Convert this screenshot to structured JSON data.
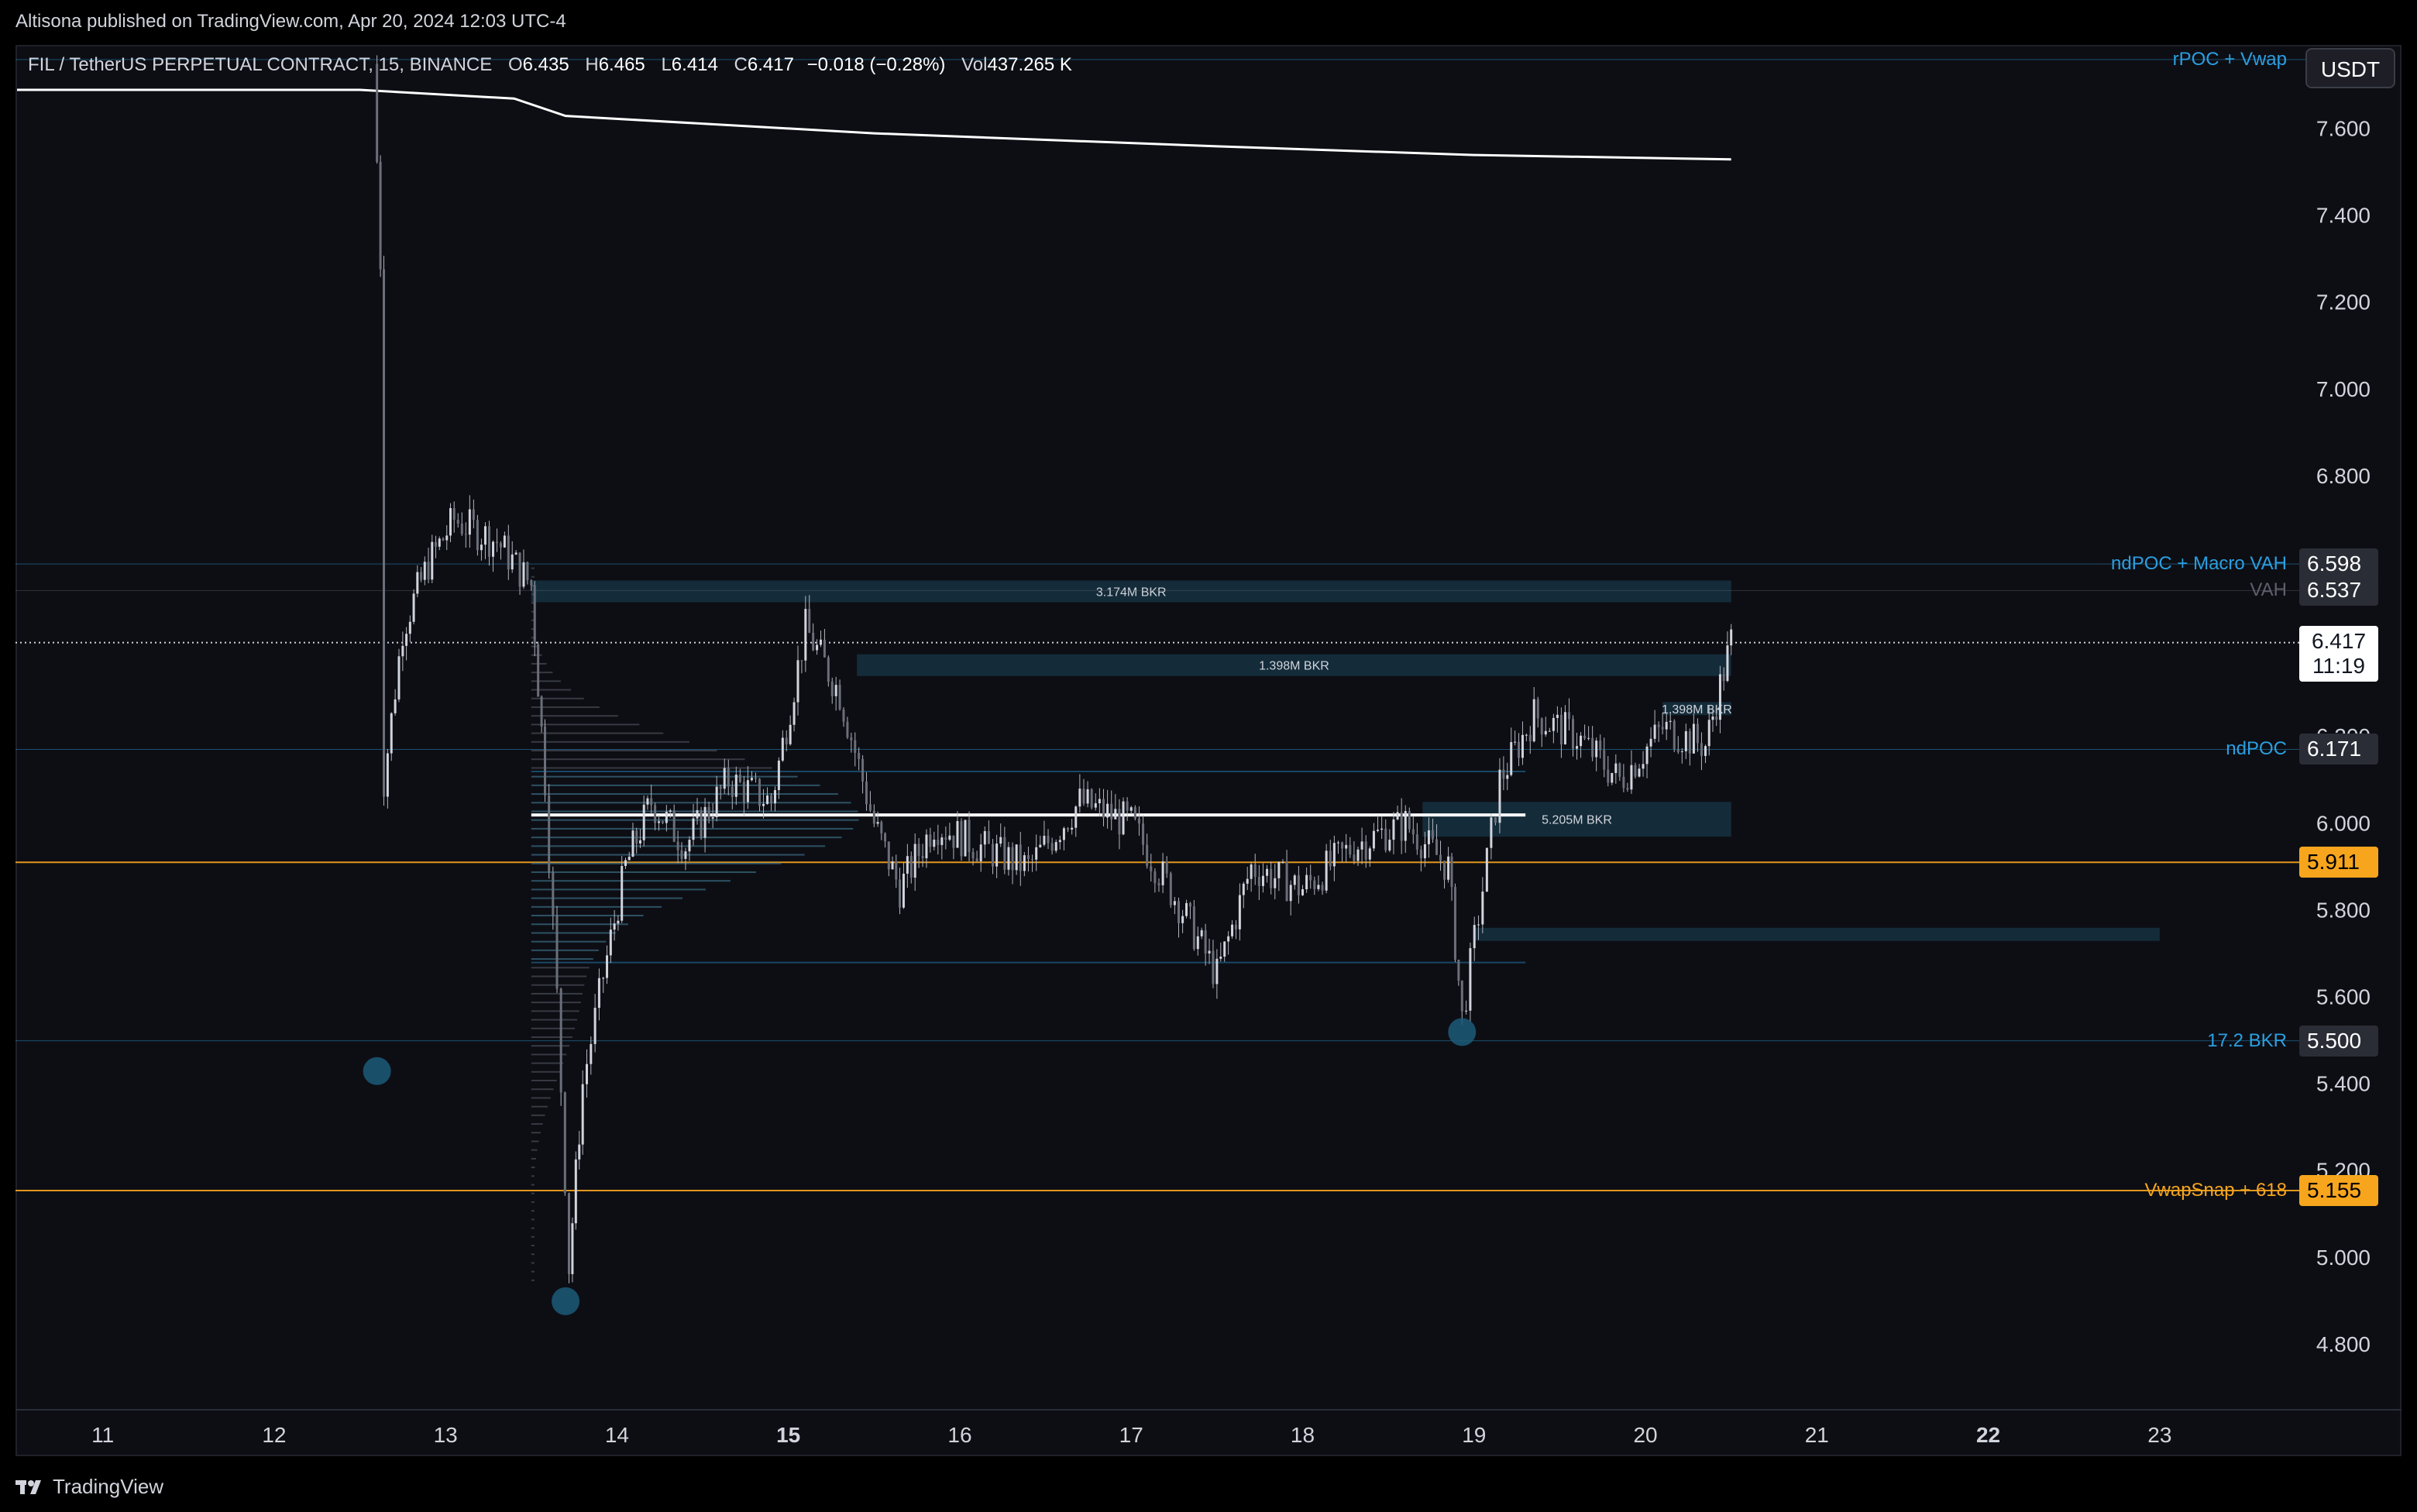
{
  "header": {
    "published": "Altisona published on TradingView.com, Apr 20, 2024 12:03 UTC-4"
  },
  "legend": {
    "symbol": "FIL / TetherUS PERPETUAL CONTRACT, 15, BINANCE",
    "o_label": "O",
    "o": "6.435",
    "h_label": "H",
    "h": "6.465",
    "l_label": "L",
    "l": "6.414",
    "c_label": "C",
    "c": "6.417",
    "change": "−0.018 (−0.28%)",
    "vol_label": "Vol",
    "vol": "437.265 K"
  },
  "currency_button": "USDT",
  "footer": {
    "brand": "TradingView"
  },
  "colors": {
    "background": "#0d0e14",
    "candles": "#b2b5be",
    "orange": "#f7a51d",
    "blue_text": "#2b9fe0",
    "zone": "#163444"
  },
  "chart_data": {
    "type": "candlestick",
    "y_range": [
      4.65,
      7.79
    ],
    "x_range": [
      10.5,
      23.76
    ],
    "y_ticks": [
      "4.800",
      "5.000",
      "5.200",
      "5.400",
      "5.600",
      "5.800",
      "6.000",
      "6.200",
      "6.400",
      "6.600",
      "6.800",
      "7.000",
      "7.200",
      "7.400",
      "7.600"
    ],
    "x_ticks": [
      {
        "label": "11",
        "value": 11,
        "bold": false
      },
      {
        "label": "12",
        "value": 12,
        "bold": false
      },
      {
        "label": "13",
        "value": 13,
        "bold": false
      },
      {
        "label": "14",
        "value": 14,
        "bold": false
      },
      {
        "label": "15",
        "value": 15,
        "bold": true
      },
      {
        "label": "16",
        "value": 16,
        "bold": false
      },
      {
        "label": "17",
        "value": 17,
        "bold": false
      },
      {
        "label": "18",
        "value": 18,
        "bold": false
      },
      {
        "label": "19",
        "value": 19,
        "bold": false
      },
      {
        "label": "20",
        "value": 20,
        "bold": false
      },
      {
        "label": "21",
        "value": 21,
        "bold": false
      },
      {
        "label": "22",
        "value": 22,
        "bold": true
      },
      {
        "label": "23",
        "value": 23,
        "bold": false
      }
    ],
    "price_path": [
      {
        "x": 12.58,
        "y": 7.75
      },
      {
        "x": 12.62,
        "y": 7.3
      },
      {
        "x": 12.64,
        "y": 6.1
      },
      {
        "x": 12.75,
        "y": 6.45
      },
      {
        "x": 12.9,
        "y": 6.6
      },
      {
        "x": 13.05,
        "y": 6.7
      },
      {
        "x": 13.3,
        "y": 6.65
      },
      {
        "x": 13.5,
        "y": 6.55
      },
      {
        "x": 13.58,
        "y": 6.1
      },
      {
        "x": 13.65,
        "y": 5.6
      },
      {
        "x": 13.72,
        "y": 4.98
      },
      {
        "x": 13.8,
        "y": 5.4
      },
      {
        "x": 13.92,
        "y": 5.65
      },
      {
        "x": 14.05,
        "y": 5.9
      },
      {
        "x": 14.2,
        "y": 6.05
      },
      {
        "x": 14.4,
        "y": 5.95
      },
      {
        "x": 14.65,
        "y": 6.1
      },
      {
        "x": 14.9,
        "y": 6.05
      },
      {
        "x": 15.1,
        "y": 6.45
      },
      {
        "x": 15.3,
        "y": 6.3
      },
      {
        "x": 15.5,
        "y": 6.0
      },
      {
        "x": 15.65,
        "y": 5.85
      },
      {
        "x": 15.85,
        "y": 6.0
      },
      {
        "x": 16.1,
        "y": 5.95
      },
      {
        "x": 16.4,
        "y": 5.9
      },
      {
        "x": 16.7,
        "y": 6.05
      },
      {
        "x": 17.0,
        "y": 6.0
      },
      {
        "x": 17.3,
        "y": 5.8
      },
      {
        "x": 17.5,
        "y": 5.65
      },
      {
        "x": 17.7,
        "y": 5.9
      },
      {
        "x": 18.0,
        "y": 5.85
      },
      {
        "x": 18.3,
        "y": 5.95
      },
      {
        "x": 18.6,
        "y": 6.0
      },
      {
        "x": 18.85,
        "y": 5.9
      },
      {
        "x": 18.93,
        "y": 5.55
      },
      {
        "x": 19.05,
        "y": 5.85
      },
      {
        "x": 19.15,
        "y": 6.1
      },
      {
        "x": 19.35,
        "y": 6.25
      },
      {
        "x": 19.6,
        "y": 6.2
      },
      {
        "x": 19.85,
        "y": 6.1
      },
      {
        "x": 20.1,
        "y": 6.22
      },
      {
        "x": 20.35,
        "y": 6.18
      },
      {
        "x": 20.5,
        "y": 6.42
      }
    ],
    "vwap_line": [
      {
        "x": 10.5,
        "y": 7.69
      },
      {
        "x": 12.5,
        "y": 7.69
      },
      {
        "x": 13.4,
        "y": 7.67
      },
      {
        "x": 13.7,
        "y": 7.63
      },
      {
        "x": 15.5,
        "y": 7.59
      },
      {
        "x": 17.5,
        "y": 7.56
      },
      {
        "x": 19.0,
        "y": 7.54
      },
      {
        "x": 20.5,
        "y": 7.53
      }
    ],
    "levels": [
      {
        "name": "rPOC + Vwap",
        "value": 7.76,
        "color": "#2b9fe0",
        "style": "solid-thin",
        "price_label": ""
      },
      {
        "name": "ndPOC + Macro VAH",
        "value": 6.598,
        "color": "#2b9fe0",
        "style": "solid-thin",
        "price_label": "6.598"
      },
      {
        "name": "VAH",
        "value": 6.537,
        "color": "#5d606b",
        "style": "solid-thin",
        "price_label": "6.537"
      },
      {
        "name": "ndPOC",
        "value": 6.171,
        "color": "#2b9fe0",
        "style": "solid-thin",
        "price_label": "6.171"
      },
      {
        "name": "",
        "value": 5.911,
        "color": "#f7a51d",
        "style": "orange",
        "price_label": "5.911"
      },
      {
        "name": "17.2 BKR",
        "value": 5.5,
        "color": "#2b9fe0",
        "style": "solid-thin",
        "price_label": "5.500"
      },
      {
        "name": "VwapSnap + 618",
        "value": 5.155,
        "color": "#f7a51d",
        "style": "orange",
        "price_label": "5.155"
      }
    ],
    "current_price": {
      "value": "6.417",
      "countdown": "11:19",
      "y": 6.417
    },
    "zones": [
      {
        "label": "3.174M BKR",
        "x1": 13.5,
        "x2": 20.5,
        "y1": 6.51,
        "y2": 6.56
      },
      {
        "label": "1.398M BKR",
        "x1": 15.4,
        "x2": 20.5,
        "y1": 6.34,
        "y2": 6.39
      },
      {
        "label": "1.398M BKR",
        "x1": 20.1,
        "x2": 20.5,
        "y1": 6.25,
        "y2": 6.28
      },
      {
        "label": "5.205M BKR",
        "x1": 18.7,
        "x2": 20.5,
        "y1": 5.97,
        "y2": 6.05
      },
      {
        "label": "",
        "x1": 19.0,
        "x2": 23.0,
        "y1": 5.73,
        "y2": 5.76
      }
    ],
    "poc_line": {
      "x1": 13.5,
      "x2": 19.3,
      "y": 6.02
    },
    "value_area_lines": [
      {
        "x1": 13.5,
        "x2": 19.3,
        "y": 6.12
      },
      {
        "x1": 13.5,
        "x2": 19.3,
        "y": 5.68
      }
    ],
    "markers": [
      {
        "x": 12.6,
        "y": 5.43
      },
      {
        "x": 13.7,
        "y": 4.9
      },
      {
        "x": 18.93,
        "y": 5.52
      }
    ]
  }
}
